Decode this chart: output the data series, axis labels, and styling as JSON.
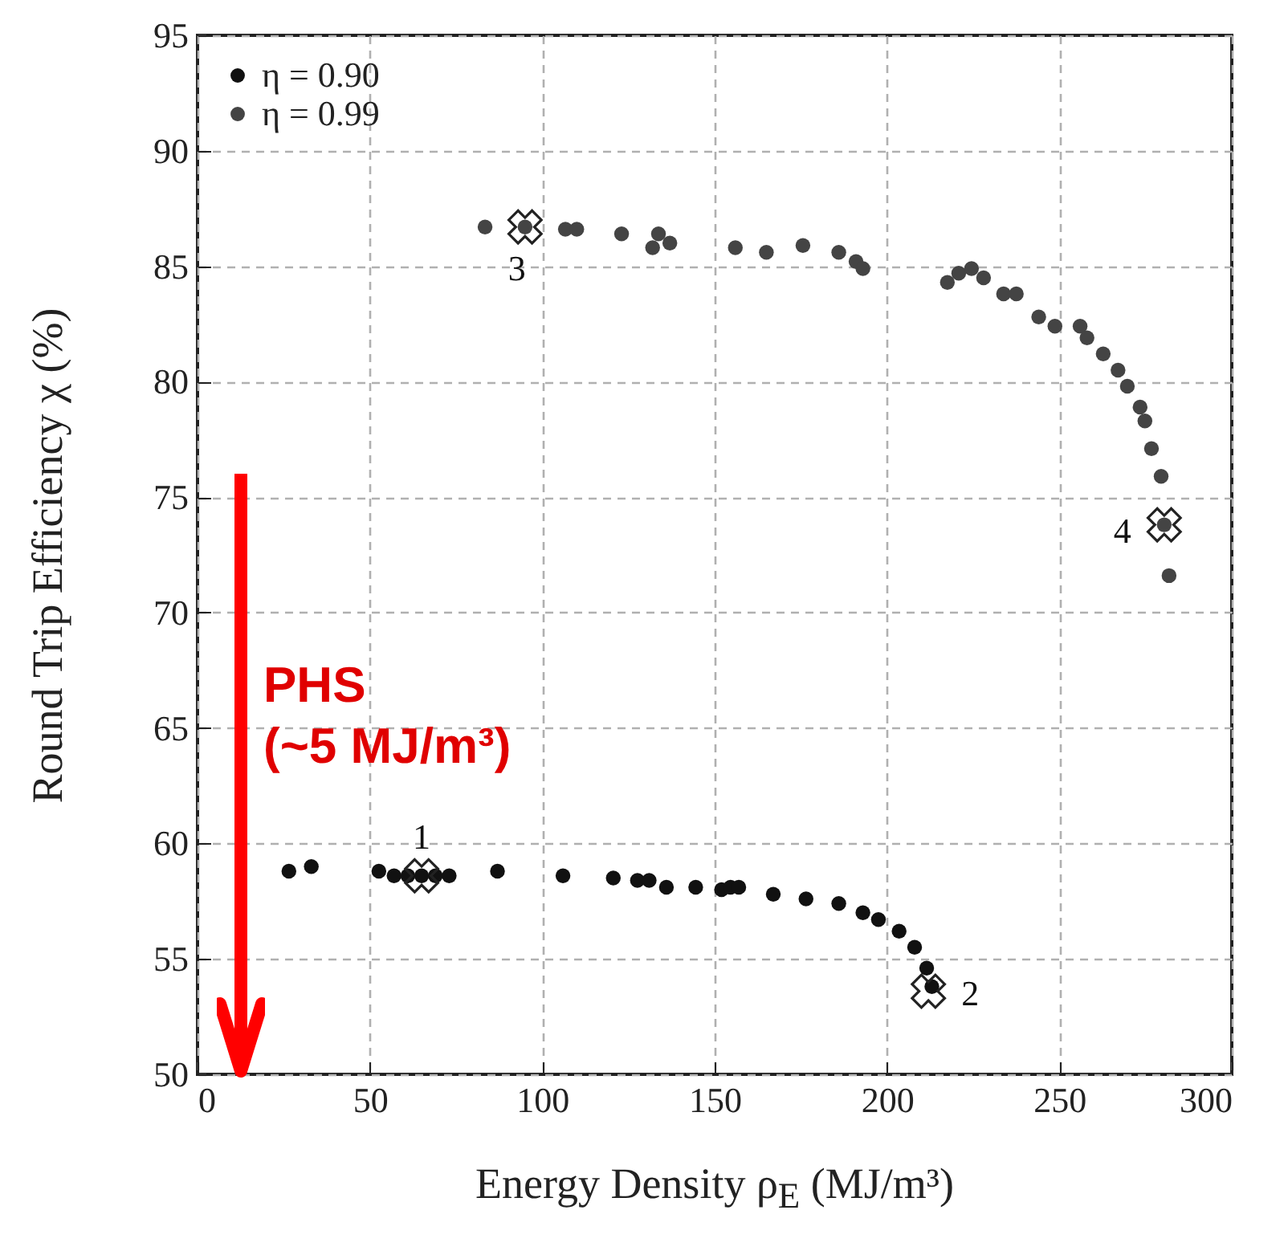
{
  "chart_data": {
    "type": "scatter",
    "xlabel": "Energy Density ρ$_{E}$ (MJ/m³)",
    "ylabel": "Round Trip Efficiency χ (%)",
    "xlim": [
      0,
      300
    ],
    "xticks": [
      0,
      50,
      100,
      150,
      200,
      250,
      300
    ],
    "ylim": [
      50,
      95
    ],
    "yticks": [
      50,
      55,
      60,
      65,
      70,
      75,
      80,
      85,
      90,
      95
    ],
    "grid": true,
    "legend": "top left",
    "marker": "circle",
    "series": [
      {
        "name": "η = 0.90",
        "color": "#111111",
        "x": [
          26.5,
          33,
          52.6,
          57,
          61,
          65,
          69,
          73,
          87,
          106,
          120.6,
          127.6,
          131,
          136,
          144.5,
          152,
          154.6,
          157,
          167,
          176.5,
          186,
          193,
          197.5,
          203.5,
          208,
          211.5,
          213
        ],
        "values": [
          58.8,
          59.0,
          58.8,
          58.6,
          58.6,
          58.6,
          58.6,
          58.6,
          58.8,
          58.6,
          58.5,
          58.4,
          58.4,
          58.1,
          58.1,
          58.0,
          58.1,
          58.1,
          57.8,
          57.6,
          57.4,
          57.0,
          56.7,
          56.2,
          55.5,
          54.6,
          53.8
        ]
      },
      {
        "name": "η = 0.99",
        "color": "#444444",
        "x": [
          83.4,
          95,
          106.7,
          110,
          123,
          132,
          133.7,
          137,
          156,
          165,
          175.6,
          186,
          191,
          193,
          217.5,
          220.8,
          224.5,
          228,
          233.8,
          237.5,
          244,
          248.7,
          256,
          258,
          262.7,
          267,
          269.7,
          273.4,
          274.8,
          276.7,
          278,
          279.5,
          280.4,
          281.8
        ],
        "values": [
          86.7,
          86.7,
          86.6,
          86.6,
          86.4,
          85.8,
          86.4,
          86.0,
          85.8,
          85.6,
          85.9,
          85.6,
          85.2,
          84.9,
          84.3,
          84.7,
          84.9,
          84.5,
          83.8,
          83.8,
          82.8,
          82.4,
          82.4,
          81.9,
          81.2,
          80.5,
          79.8,
          78.9,
          78.3,
          77.1,
          null,
          75.9,
          73.8,
          71.6
        ]
      },
      {
        "type": "scatter",
        "marker": "cross",
        "color": "#222222",
        "x": [
          65,
          212,
          95,
          280.4
        ],
        "values": [
          58.6,
          53.6,
          86.7,
          73.8
        ]
      }
    ],
    "annotations": [
      {
        "text": "1",
        "x": 65,
        "y": 58.6
      },
      {
        "text": "2",
        "x": 212,
        "y": 53.6
      },
      {
        "text": "3",
        "x": 95,
        "y": 86.7
      },
      {
        "text": "4",
        "x": 280.4,
        "y": 73.8
      },
      "PHS\n(~5 MJ/m³)"
    ]
  }
}
